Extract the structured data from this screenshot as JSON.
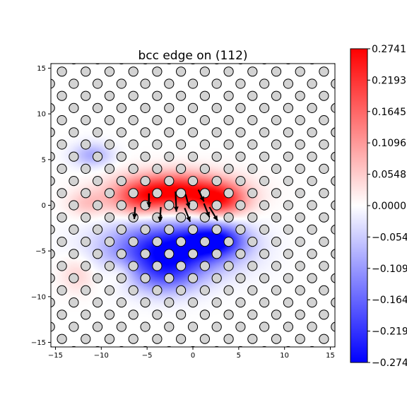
{
  "chart_data": {
    "type": "heatmap",
    "title": "bcc edge on (112)",
    "xlabel": "",
    "ylabel": "",
    "xlim": [
      -15.5,
      15.5
    ],
    "ylim": [
      -15.5,
      15.5
    ],
    "x_ticks": [
      -15,
      -10,
      -5,
      0,
      5,
      10,
      15
    ],
    "x_tick_labels": [
      "−15",
      "−10",
      "−5",
      "0",
      "5",
      "10",
      "15"
    ],
    "y_ticks": [
      -15,
      -10,
      -5,
      0,
      5,
      10,
      15
    ],
    "y_tick_labels": [
      "−15",
      "−10",
      "−5",
      "0",
      "5",
      "10",
      "15"
    ],
    "colormap": "bwr",
    "colorbar": {
      "range": [
        -0.2741,
        0.2741
      ],
      "ticks": [
        0.2741,
        0.2193,
        0.1645,
        0.1096,
        0.0548,
        0.0,
        -0.0548,
        -0.1096,
        -0.1645,
        -0.2193,
        -0.2741
      ],
      "tick_labels": [
        "0.2741",
        "0.2193",
        "0.1645",
        "0.1096",
        "0.0548",
        "0.0000",
        "−0.0548",
        "−0.1096",
        "−0.1645",
        "−0.2193",
        "−0.2741"
      ]
    },
    "field": [
      {
        "x": -2.0,
        "y": 1.5,
        "value": 0.2741,
        "sx": 4.0,
        "sy": 1.4
      },
      {
        "x": 3.0,
        "y": 0.5,
        "value": 0.18,
        "sx": 2.0,
        "sy": 1.2
      },
      {
        "x": -6.0,
        "y": 0.5,
        "value": 0.1,
        "sx": 2.0,
        "sy": 1.2
      },
      {
        "x": -11.5,
        "y": 0.2,
        "value": 0.06,
        "sx": 1.5,
        "sy": 1.0
      },
      {
        "x": -12.5,
        "y": -7.5,
        "value": 0.05,
        "sx": 1.4,
        "sy": 1.4
      },
      {
        "x": -8.0,
        "y": -7.3,
        "value": 0.05,
        "sx": 1.2,
        "sy": 1.0
      },
      {
        "x": -2.5,
        "y": -4.8,
        "value": -0.2741,
        "sx": 4.5,
        "sy": 2.0
      },
      {
        "x": 2.5,
        "y": -3.8,
        "value": -0.2,
        "sx": 2.2,
        "sy": 1.2
      },
      {
        "x": -3.0,
        "y": -7.8,
        "value": -0.12,
        "sx": 2.5,
        "sy": 1.5
      },
      {
        "x": -11.0,
        "y": 5.5,
        "value": -0.09,
        "sx": 1.5,
        "sy": 0.9
      }
    ],
    "atoms": {
      "row_spacing": 1.33,
      "column_spacing": 2.6,
      "row_shift": 1.3,
      "visible": true
    },
    "displacement_arrows": [
      {
        "x": -6.3,
        "y": -0.2,
        "dx": -0.1,
        "dy": -1.3
      },
      {
        "x": -4.8,
        "y": 1.3,
        "dx": 0.0,
        "dy": -1.5
      },
      {
        "x": -3.5,
        "y": -0.2,
        "dx": -0.1,
        "dy": -1.6
      },
      {
        "x": -1.9,
        "y": 1.5,
        "dx": 0.1,
        "dy": -2.2
      },
      {
        "x": -0.8,
        "y": 1.2,
        "dx": 0.4,
        "dy": -1.5
      },
      {
        "x": -0.9,
        "y": -0.3,
        "dx": 0.6,
        "dy": -1.5
      },
      {
        "x": 0.6,
        "y": 1.7,
        "dx": 0.6,
        "dy": -1.3
      },
      {
        "x": 1.2,
        "y": 0.2,
        "dx": 0.6,
        "dy": -1.5
      },
      {
        "x": 1.8,
        "y": -0.2,
        "dx": 0.9,
        "dy": -1.5
      }
    ]
  }
}
